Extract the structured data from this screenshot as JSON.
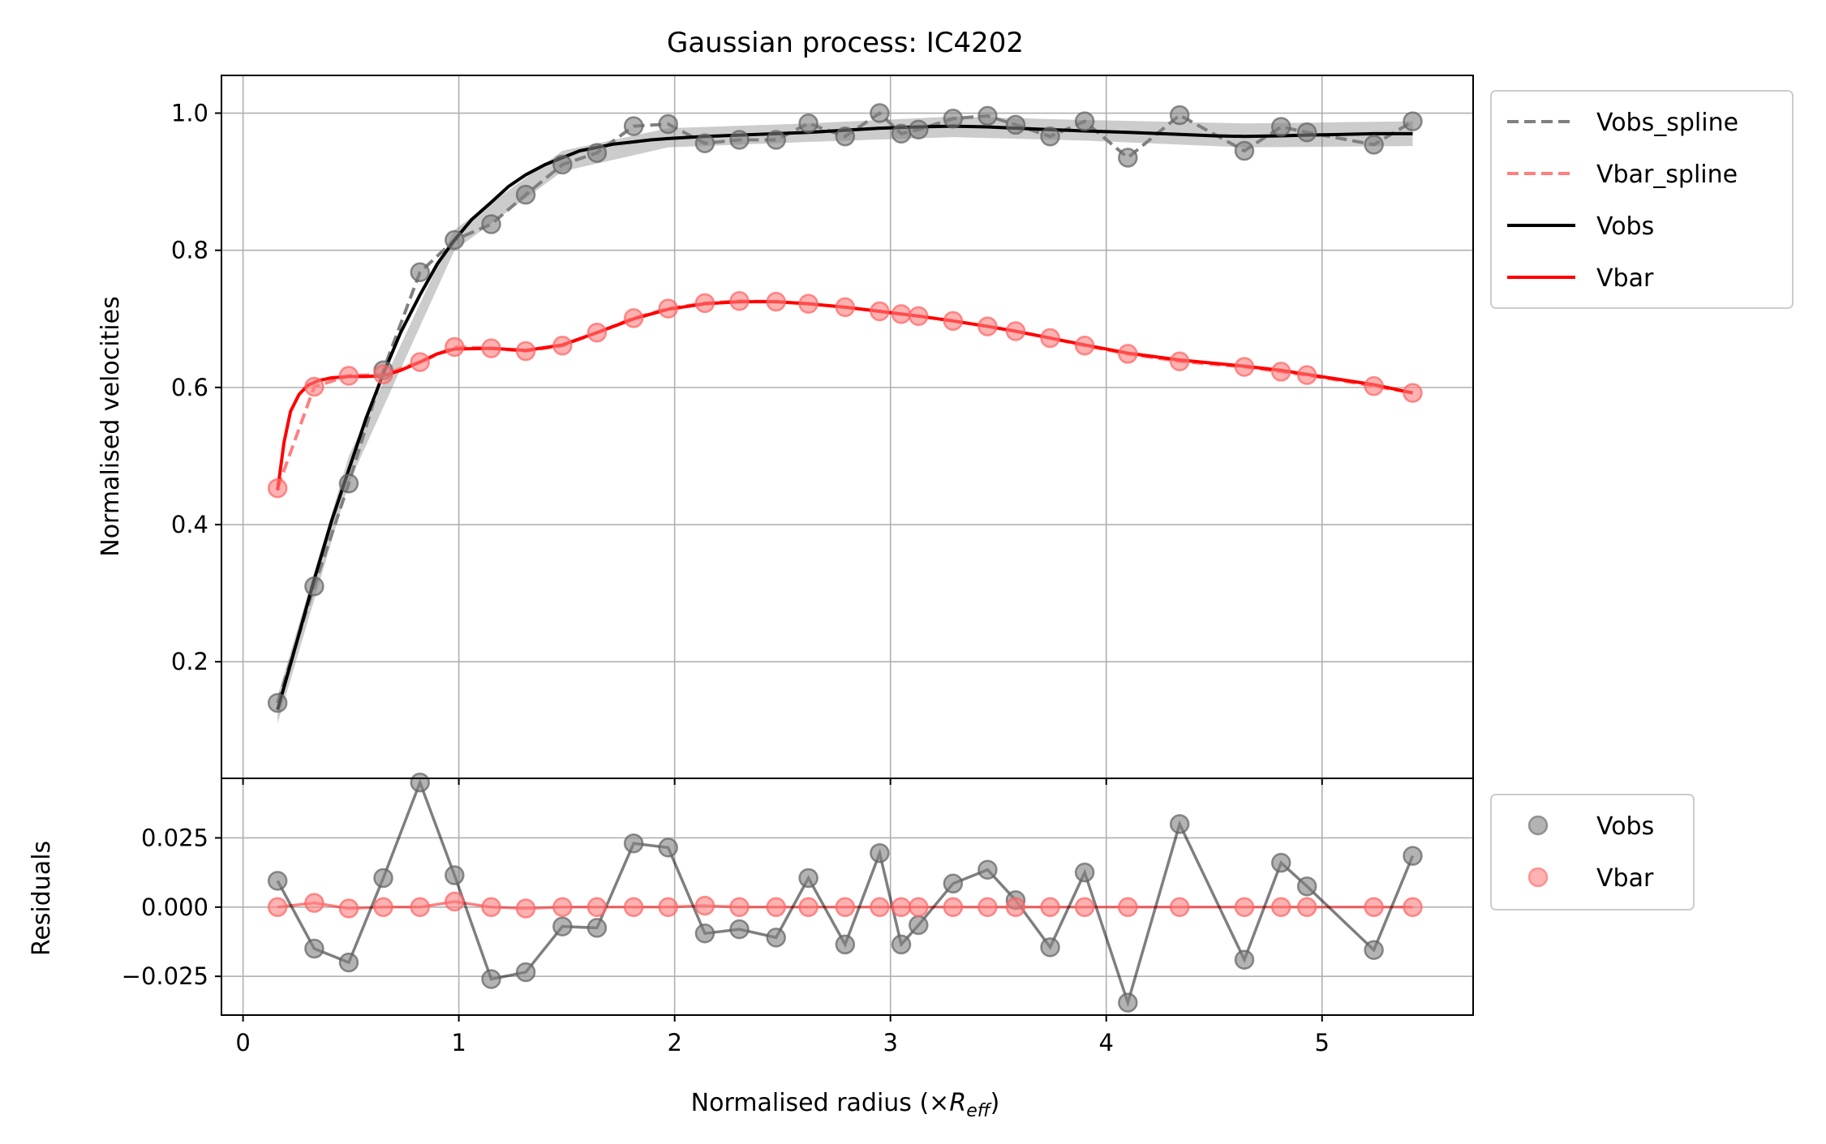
{
  "chart_data": [
    {
      "type": "line",
      "title": "Gaussian process: IC4202",
      "xlabel": "",
      "ylabel": "Normalised velocities",
      "xlim": [
        -0.1,
        5.7
      ],
      "ylim": [
        0.03,
        1.055
      ],
      "xticks": [
        0,
        1,
        2,
        3,
        4,
        5
      ],
      "yticks": [
        0.2,
        0.4,
        0.6,
        0.8,
        1.0
      ],
      "ytick_labels": [
        "0.2",
        "0.4",
        "0.6",
        "0.8",
        "1.0"
      ],
      "grid": true,
      "legend_position": "outside-right-top",
      "x": [
        0.16,
        0.33,
        0.49,
        0.65,
        0.82,
        0.98,
        1.15,
        1.31,
        1.48,
        1.64,
        1.81,
        1.97,
        2.14,
        2.3,
        2.47,
        2.62,
        2.79,
        2.95,
        3.05,
        3.13,
        3.29,
        3.45,
        3.58,
        3.74,
        3.9,
        4.1,
        4.34,
        4.64,
        4.81,
        4.93,
        5.24,
        5.42
      ],
      "series": [
        {
          "name": "Vobs_spline",
          "style": "dashed",
          "color": "#808080",
          "y": [
            0.14,
            0.31,
            0.46,
            0.625,
            0.768,
            0.815,
            0.838,
            0.881,
            0.925,
            0.942,
            0.981,
            0.984,
            0.956,
            0.961,
            0.961,
            0.985,
            0.966,
            1.0,
            0.97,
            0.976,
            0.992,
            0.996,
            0.983,
            0.966,
            0.988,
            0.935,
            0.997,
            0.945,
            0.98,
            0.972,
            0.954,
            0.988
          ]
        },
        {
          "name": "Vbar_spline",
          "style": "dashed",
          "color": "#ff7f7f",
          "y": [
            0.453,
            0.601,
            0.617,
            0.619,
            0.637,
            0.659,
            0.657,
            0.653,
            0.661,
            0.68,
            0.701,
            0.715,
            0.723,
            0.726,
            0.725,
            0.722,
            0.717,
            0.711,
            0.707,
            0.704,
            0.697,
            0.689,
            0.682,
            0.672,
            0.661,
            0.649,
            0.638,
            0.63,
            0.623,
            0.618,
            0.602,
            0.592
          ]
        },
        {
          "name": "Vobs",
          "style": "solid",
          "color": "#000000",
          "x_curve": [
            0.16,
            0.25,
            0.33,
            0.41,
            0.49,
            0.57,
            0.65,
            0.73,
            0.82,
            0.9,
            0.98,
            1.06,
            1.15,
            1.23,
            1.31,
            1.4,
            1.48,
            1.56,
            1.64,
            1.72,
            1.81,
            1.89,
            1.97,
            2.14,
            2.3,
            2.47,
            2.62,
            2.79,
            2.95,
            3.13,
            3.29,
            3.45,
            3.58,
            3.74,
            3.9,
            4.1,
            4.34,
            4.5,
            4.64,
            4.81,
            4.93,
            5.1,
            5.24,
            5.42
          ],
          "y_curve": [
            0.13,
            0.23,
            0.32,
            0.405,
            0.48,
            0.555,
            0.62,
            0.68,
            0.735,
            0.78,
            0.815,
            0.845,
            0.87,
            0.893,
            0.91,
            0.925,
            0.935,
            0.945,
            0.95,
            0.955,
            0.958,
            0.961,
            0.963,
            0.966,
            0.968,
            0.97,
            0.972,
            0.975,
            0.978,
            0.98,
            0.981,
            0.98,
            0.978,
            0.976,
            0.974,
            0.972,
            0.969,
            0.967,
            0.966,
            0.967,
            0.968,
            0.969,
            0.97,
            0.97
          ],
          "uncertainty_band": [
            [
              0.16,
              0.11,
              0.15
            ],
            [
              0.49,
              0.46,
              0.5
            ],
            [
              0.98,
              0.8,
              0.83
            ],
            [
              1.48,
              0.915,
              0.945
            ],
            [
              1.97,
              0.95,
              0.978
            ],
            [
              2.62,
              0.958,
              0.985
            ],
            [
              3.29,
              0.965,
              0.995
            ],
            [
              3.9,
              0.96,
              0.99
            ],
            [
              4.64,
              0.95,
              0.985
            ],
            [
              5.42,
              0.952,
              0.988
            ]
          ]
        },
        {
          "name": "Vbar",
          "style": "solid",
          "color": "#ff0000",
          "x_curve": [
            0.16,
            0.19,
            0.22,
            0.26,
            0.3,
            0.35,
            0.41,
            0.49,
            0.57,
            0.65,
            0.73,
            0.82,
            0.9,
            0.98,
            1.15,
            1.31,
            1.48,
            1.64,
            1.81,
            1.97,
            2.14,
            2.3,
            2.47,
            2.62,
            2.79,
            2.95,
            3.13,
            3.29,
            3.45,
            3.58,
            3.74,
            3.9,
            4.1,
            4.34,
            4.64,
            4.81,
            4.93,
            5.24,
            5.42
          ],
          "y_curve": [
            0.45,
            0.52,
            0.565,
            0.59,
            0.603,
            0.61,
            0.614,
            0.616,
            0.616,
            0.617,
            0.625,
            0.637,
            0.649,
            0.656,
            0.657,
            0.654,
            0.662,
            0.68,
            0.7,
            0.714,
            0.722,
            0.725,
            0.725,
            0.722,
            0.717,
            0.711,
            0.704,
            0.697,
            0.689,
            0.682,
            0.672,
            0.662,
            0.65,
            0.64,
            0.631,
            0.625,
            0.619,
            0.604,
            0.592
          ]
        }
      ]
    },
    {
      "type": "scatter",
      "title": "",
      "xlabel": "Normalised radius (×",
      "xlabel_math": "R",
      "xlabel_sub": "eff",
      "xlabel_suffix": ")",
      "ylabel": "Residuals",
      "xlim": [
        -0.1,
        5.7
      ],
      "ylim": [
        -0.039,
        0.0465
      ],
      "xticks": [
        0,
        1,
        2,
        3,
        4,
        5
      ],
      "xtick_labels": [
        "0",
        "1",
        "2",
        "3",
        "4",
        "5"
      ],
      "yticks": [
        0.025,
        0.0,
        -0.025
      ],
      "ytick_labels": [
        "0.025",
        "0.000",
        "−0.025"
      ],
      "grid": true,
      "legend_position": "outside-right-top",
      "x": [
        0.16,
        0.33,
        0.49,
        0.65,
        0.82,
        0.98,
        1.15,
        1.31,
        1.48,
        1.64,
        1.81,
        1.97,
        2.14,
        2.3,
        2.47,
        2.62,
        2.79,
        2.95,
        3.05,
        3.13,
        3.29,
        3.45,
        3.58,
        3.74,
        3.9,
        4.1,
        4.34,
        4.64,
        4.81,
        4.93,
        5.24,
        5.42
      ],
      "series": [
        {
          "name": "Vobs",
          "color": "#808080",
          "y": [
            0.0095,
            -0.015,
            -0.02,
            0.0105,
            0.045,
            0.0115,
            -0.026,
            -0.0235,
            -0.007,
            -0.0075,
            0.023,
            0.0215,
            -0.0095,
            -0.008,
            -0.011,
            0.0105,
            -0.0135,
            0.0195,
            -0.0135,
            -0.0065,
            0.0085,
            0.0135,
            0.0025,
            -0.0145,
            0.0125,
            -0.0345,
            0.03,
            -0.019,
            0.016,
            0.0075,
            -0.0155,
            0.0185
          ]
        },
        {
          "name": "Vbar",
          "color": "#ff7f7f",
          "y": [
            0.0,
            0.0015,
            -0.0005,
            0.0,
            0.0,
            0.002,
            0.0,
            -0.0005,
            0.0,
            0.0,
            0.0,
            0.0,
            0.0005,
            0.0,
            0.0,
            0.0,
            0.0,
            0.0,
            0.0,
            0.0,
            0.0,
            0.0,
            0.0,
            0.0,
            0.0,
            0.0,
            0.0,
            0.0,
            0.0,
            0.0,
            0.0,
            0.0
          ]
        }
      ]
    }
  ]
}
